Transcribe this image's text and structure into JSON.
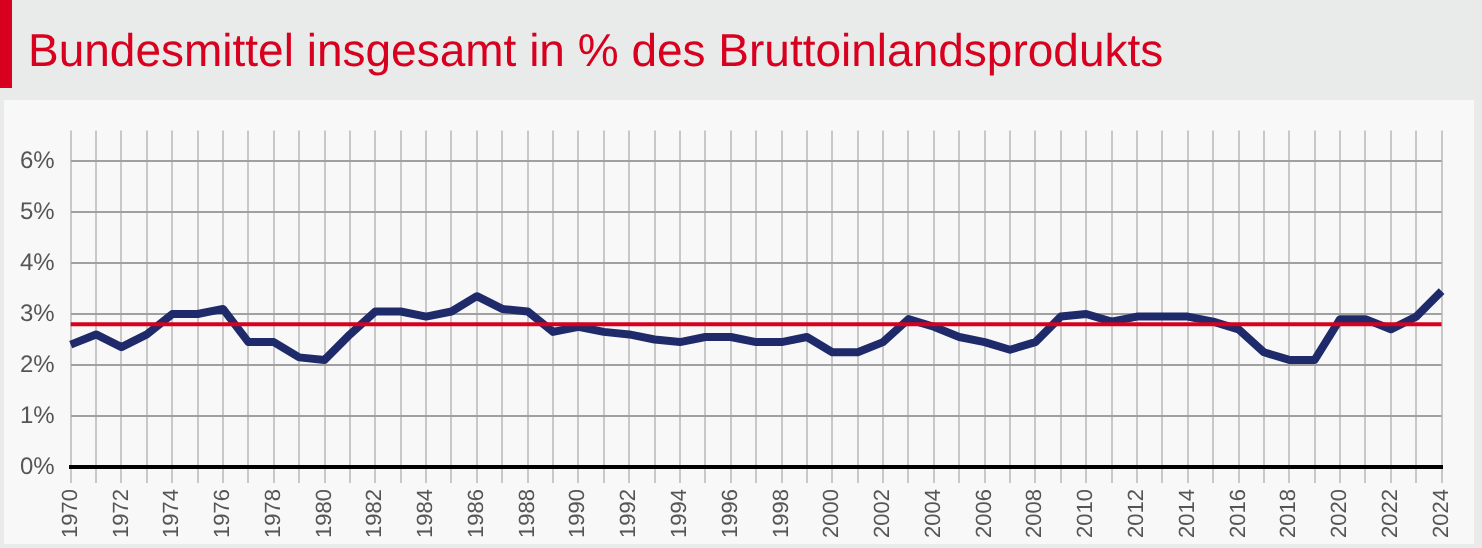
{
  "chart_data": {
    "type": "line",
    "title": "Bundesmittel insgesamt in % des Bruttoinlandsprodukts",
    "categories": [
      "1970",
      null,
      "1972",
      null,
      "1974",
      null,
      "1976",
      null,
      "1978",
      null,
      "1980",
      null,
      "1982",
      null,
      "1984",
      null,
      "1986",
      null,
      "1988",
      null,
      "1990",
      null,
      "1992",
      null,
      "1994",
      null,
      "1996",
      null,
      "1998",
      null,
      "2000",
      null,
      "2002",
      null,
      "2004",
      null,
      "2006",
      null,
      "2008",
      null,
      "2010",
      null,
      "2012",
      null,
      "2014",
      null,
      "2016",
      null,
      "2018",
      null,
      "2020",
      null,
      "2022",
      null,
      "2024"
    ],
    "series": [
      {
        "color": "#1f2a6b",
        "values": [
          2.4,
          2.6,
          2.35,
          2.6,
          3.0,
          3.0,
          3.1,
          2.45,
          2.45,
          2.15,
          2.1,
          2.6,
          3.05,
          3.05,
          2.95,
          3.05,
          3.35,
          3.1,
          3.05,
          2.65,
          2.75,
          2.65,
          2.6,
          2.5,
          2.45,
          2.55,
          2.55,
          2.45,
          2.45,
          2.55,
          2.25,
          2.25,
          2.45,
          2.9,
          2.75,
          2.55,
          2.45,
          2.3,
          2.45,
          2.95,
          3.0,
          2.85,
          2.95,
          2.95,
          2.95,
          2.85,
          2.7,
          2.25,
          2.1,
          2.1,
          2.9,
          2.9,
          2.7,
          2.95,
          3.45
        ]
      }
    ],
    "ylim": [
      0,
      6.6
    ],
    "yticks": [
      {
        "value": 0,
        "label": "0%"
      },
      {
        "value": 1,
        "label": "1%"
      },
      {
        "value": 2,
        "label": "2%"
      },
      {
        "value": 3,
        "label": "3%"
      },
      {
        "value": 4,
        "label": "4%"
      },
      {
        "value": 5,
        "label": "5%"
      },
      {
        "value": 6,
        "label": "6%"
      }
    ],
    "ref_lines": [
      {
        "axis": "y",
        "value": 2.8,
        "color": "#d7001e"
      }
    ],
    "grid": true,
    "legend": false,
    "marker": "none",
    "line_style": "solid"
  }
}
